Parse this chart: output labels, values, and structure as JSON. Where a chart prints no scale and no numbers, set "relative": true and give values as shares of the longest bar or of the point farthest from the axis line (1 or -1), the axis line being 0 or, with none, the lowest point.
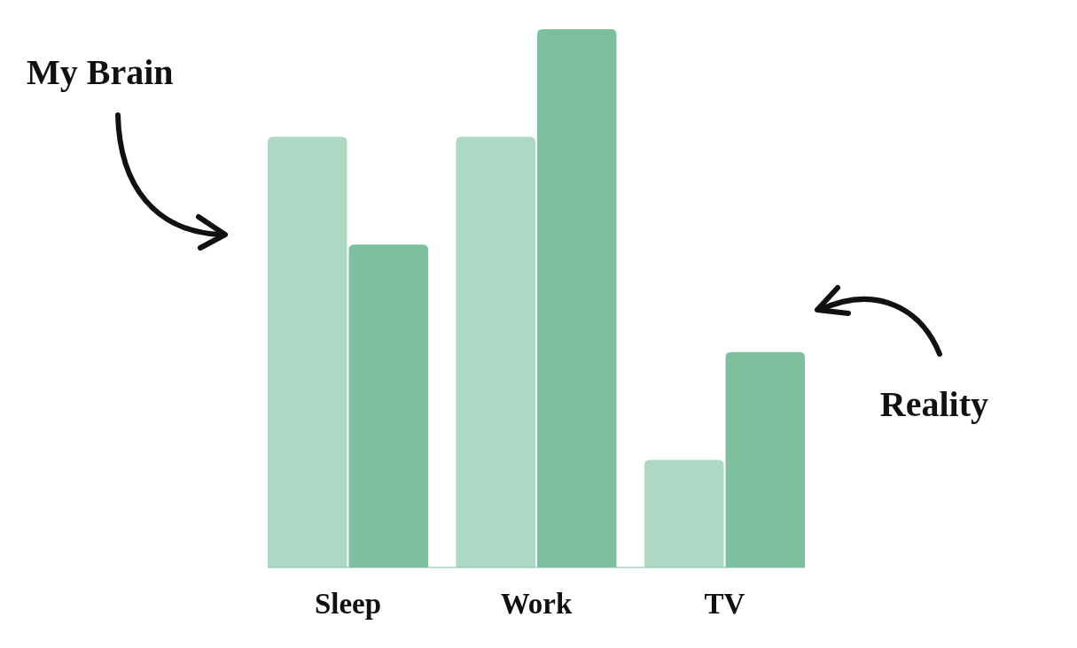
{
  "chart_data": {
    "type": "bar",
    "relative": true,
    "categories": [
      "Sleep",
      "Work",
      "TV"
    ],
    "series": [
      {
        "name": "My Brain",
        "color": "#acd8c4",
        "values": [
          0.8,
          0.8,
          0.2
        ]
      },
      {
        "name": "Reality",
        "color": "#7dc0a0",
        "values": [
          0.6,
          1,
          0.4
        ]
      }
    ]
  }
}
